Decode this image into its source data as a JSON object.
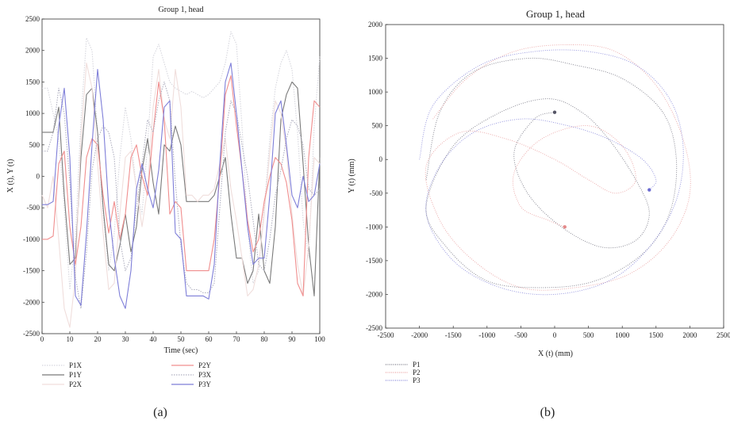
{
  "chart_data": [
    {
      "type": "line",
      "panel_label": "(a)",
      "title": "Group 1, head",
      "xlabel": "Time (sec)",
      "ylabel": "X (t), Y (t)",
      "xlim": [
        0,
        100
      ],
      "ylim": [
        -2500,
        2500
      ],
      "xticks": [
        "0",
        "10",
        "20",
        "30",
        "40",
        "50",
        "60",
        "70",
        "80",
        "90",
        "100"
      ],
      "yticks": [
        "2500",
        "2000",
        "1500",
        "1000",
        "500",
        "0",
        "-500",
        "-1000",
        "-1500",
        "-2000",
        "-2500"
      ],
      "x": [
        0,
        2,
        4,
        6,
        8,
        10,
        12,
        14,
        16,
        18,
        20,
        22,
        24,
        26,
        28,
        30,
        32,
        34,
        36,
        38,
        40,
        42,
        44,
        46,
        48,
        50,
        52,
        54,
        56,
        58,
        60,
        62,
        64,
        66,
        68,
        70,
        72,
        74,
        76,
        78,
        80,
        82,
        84,
        86,
        88,
        90,
        92,
        94,
        96,
        98,
        100
      ],
      "series": [
        {
          "name": "P1X",
          "color": "#d7d7de",
          "dash": "1.5 1.5",
          "values": [
            1400,
            1400,
            1000,
            600,
            -500,
            -1800,
            -1000,
            900,
            2200,
            2000,
            700,
            -600,
            -1500,
            -900,
            300,
            1100,
            600,
            -200,
            -600,
            500,
            1900,
            2100,
            1800,
            1500,
            1400,
            1350,
            1300,
            1350,
            1300,
            1250,
            1300,
            1400,
            1500,
            1800,
            2300,
            2100,
            800,
            -800,
            -1700,
            -1500,
            -500,
            600,
            1400,
            1800,
            2000,
            1700,
            700,
            -700,
            -1300,
            800,
            1900
          ]
        },
        {
          "name": "P1Y",
          "color": "#7a7a7a",
          "dash": "",
          "values": [
            700,
            700,
            700,
            1100,
            -300,
            -1400,
            -1300,
            300,
            1300,
            1400,
            700,
            -500,
            -1400,
            -1500,
            -1100,
            -600,
            -1200,
            -800,
            100,
            600,
            -100,
            -600,
            500,
            400,
            800,
            500,
            -400,
            -400,
            -400,
            -400,
            -400,
            -300,
            0,
            300,
            -600,
            -1300,
            -1300,
            -1700,
            -1500,
            -600,
            -1500,
            -1700,
            -800,
            900,
            1300,
            1500,
            1400,
            200,
            -1100,
            -1900,
            300
          ]
        },
        {
          "name": "P2X",
          "color": "#f0dedc",
          "dash": "",
          "values": [
            -300,
            -500,
            0,
            -1000,
            -2100,
            -2400,
            -1600,
            600,
            1800,
            1400,
            200,
            -900,
            -1800,
            -1700,
            -600,
            300,
            400,
            -200,
            -800,
            -200,
            1100,
            1700,
            900,
            600,
            1700,
            1100,
            -300,
            -300,
            -400,
            -300,
            -300,
            -200,
            200,
            600,
            -200,
            -700,
            -1300,
            -1900,
            -1800,
            -1400,
            -600,
            400,
            1200,
            1000,
            400,
            -600,
            -1400,
            -1900,
            -1100,
            300,
            200
          ]
        },
        {
          "name": "P2Y",
          "color": "#f08e8e",
          "dash": "",
          "values": [
            -1000,
            -1000,
            -950,
            200,
            400,
            -800,
            -1400,
            -800,
            300,
            600,
            500,
            -300,
            -900,
            -400,
            -1000,
            -600,
            300,
            500,
            0,
            -300,
            700,
            1500,
            900,
            -600,
            -400,
            -500,
            -1500,
            -1500,
            -1500,
            -1500,
            -1500,
            -1000,
            0,
            1300,
            1600,
            800,
            100,
            -700,
            -1200,
            -1000,
            -400,
            0,
            300,
            200,
            -100,
            -700,
            -1700,
            -1900,
            300,
            1200,
            1100
          ]
        },
        {
          "name": "P3X",
          "color": "#b1b1c1",
          "dash": "1.5 1.5",
          "values": [
            400,
            400,
            700,
            1400,
            1000,
            -100,
            -1600,
            -2100,
            -1200,
            100,
            600,
            800,
            700,
            300,
            -1000,
            -1500,
            -1300,
            -500,
            200,
            900,
            700,
            1200,
            1500,
            1200,
            -100,
            -1100,
            -1700,
            -1800,
            -1800,
            -1850,
            -1850,
            -1700,
            -500,
            700,
            1200,
            1000,
            500,
            0,
            -700,
            -1400,
            -1500,
            -1000,
            -300,
            100,
            600,
            900,
            800,
            500,
            -200,
            -300,
            -200
          ]
        },
        {
          "name": "P3Y",
          "color": "#7e7ed8",
          "dash": "",
          "values": [
            -450,
            -450,
            -400,
            800,
            1400,
            300,
            -1900,
            -2050,
            -900,
            500,
            1700,
            900,
            -500,
            -1300,
            -1900,
            -2100,
            -1500,
            -200,
            200,
            -200,
            -500,
            100,
            1100,
            1200,
            -900,
            -1000,
            -1900,
            -1900,
            -1900,
            -1900,
            -1950,
            -1400,
            200,
            1500,
            1800,
            1000,
            100,
            -800,
            -1400,
            -1300,
            -1300,
            -300,
            1000,
            1200,
            500,
            -300,
            -500,
            0,
            -400,
            -300,
            200
          ]
        }
      ],
      "legend_layout": "below-plot",
      "legend_order": [
        "P1X",
        "P1Y",
        "P2X",
        "P2Y",
        "P3X",
        "P3Y"
      ]
    },
    {
      "type": "scatter",
      "panel_label": "(b)",
      "title": "Group 1, head",
      "xlabel": "X (t) (mm)",
      "ylabel": "Y (t) (mm)",
      "xlim": [
        -2500,
        2500
      ],
      "ylim": [
        -2500,
        2000
      ],
      "xticks": [
        "-2500",
        "-2000",
        "-1500",
        "-1000",
        "-500",
        "0",
        "500",
        "1000",
        "1500",
        "2000",
        "2500"
      ],
      "yticks": [
        "2000",
        "1500",
        "1000",
        "500",
        "0",
        "-500",
        "-1000",
        "-1500",
        "-2000",
        "-2500"
      ],
      "series": [
        {
          "name": "P1",
          "color": "#555566",
          "marker_at": [
            0,
            700
          ],
          "points": [
            [
              -1900,
              -300
            ],
            [
              -1700,
              700
            ],
            [
              -1200,
              1300
            ],
            [
              -400,
              1500
            ],
            [
              300,
              1400
            ],
            [
              1000,
              1200
            ],
            [
              1600,
              700
            ],
            [
              1800,
              0
            ],
            [
              1700,
              -800
            ],
            [
              1300,
              -1400
            ],
            [
              600,
              -1800
            ],
            [
              -200,
              -1900
            ],
            [
              -1000,
              -1800
            ],
            [
              -1600,
              -1300
            ],
            [
              -1900,
              -700
            ],
            [
              -1500,
              200
            ],
            [
              -800,
              700
            ],
            [
              -100,
              900
            ],
            [
              400,
              700
            ],
            [
              800,
              300
            ],
            [
              1200,
              -300
            ],
            [
              1400,
              -800
            ],
            [
              1200,
              -1200
            ],
            [
              700,
              -1300
            ],
            [
              100,
              -1000
            ],
            [
              -400,
              -500
            ],
            [
              -600,
              100
            ],
            [
              -300,
              600
            ],
            [
              0,
              700
            ]
          ]
        },
        {
          "name": "P2",
          "color": "#e48a8a",
          "marker_at": [
            150,
            -1000
          ],
          "points": [
            [
              -1800,
              600
            ],
            [
              -1300,
              1200
            ],
            [
              -600,
              1600
            ],
            [
              200,
              1700
            ],
            [
              900,
              1600
            ],
            [
              1500,
              1100
            ],
            [
              1900,
              300
            ],
            [
              2000,
              -500
            ],
            [
              1700,
              -1200
            ],
            [
              1100,
              -1700
            ],
            [
              300,
              -1900
            ],
            [
              -500,
              -1900
            ],
            [
              -1200,
              -1500
            ],
            [
              -1700,
              -900
            ],
            [
              -1900,
              -100
            ],
            [
              -1400,
              400
            ],
            [
              -700,
              300
            ],
            [
              0,
              0
            ],
            [
              500,
              -300
            ],
            [
              900,
              -500
            ],
            [
              1200,
              -300
            ],
            [
              1000,
              200
            ],
            [
              500,
              500
            ],
            [
              -200,
              300
            ],
            [
              -600,
              -200
            ],
            [
              -500,
              -700
            ],
            [
              -100,
              -900
            ],
            [
              150,
              -1000
            ]
          ]
        },
        {
          "name": "P3",
          "color": "#6a6ad0",
          "marker_at": [
            1400,
            -450
          ],
          "points": [
            [
              -2000,
              0
            ],
            [
              -1800,
              800
            ],
            [
              -1100,
              1400
            ],
            [
              -300,
              1600
            ],
            [
              500,
              1600
            ],
            [
              1200,
              1400
            ],
            [
              1700,
              900
            ],
            [
              1900,
              200
            ],
            [
              1800,
              -600
            ],
            [
              1400,
              -1300
            ],
            [
              800,
              -1800
            ],
            [
              0,
              -2000
            ],
            [
              -800,
              -1900
            ],
            [
              -1500,
              -1500
            ],
            [
              -1900,
              -800
            ],
            [
              -1700,
              -100
            ],
            [
              -1200,
              400
            ],
            [
              -500,
              600
            ],
            [
              200,
              500
            ],
            [
              800,
              300
            ],
            [
              1300,
              0
            ],
            [
              1500,
              -300
            ],
            [
              1400,
              -450
            ]
          ]
        }
      ],
      "legend_layout": "below-plot"
    }
  ]
}
